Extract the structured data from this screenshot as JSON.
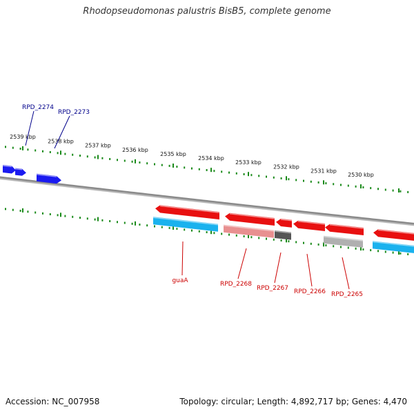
{
  "title": "Rhodopseudomonas palustris BisB5, complete genome",
  "footer": {
    "accession": "Accession: NC_007958",
    "summary": "Topology: circular; Length: 4,892,717 bp; Genes: 4,470"
  },
  "colors": {
    "backbone": "#808080",
    "tick": "#1a8a1a",
    "forward_gene": "#1a1af0",
    "reverse_gene": "#e81010",
    "reverse_label": "#cc0000",
    "forward_label": "#00008b",
    "cds_cyan": "#1ab2ee",
    "cds_pink": "#e89090",
    "cds_dark_gray": "#555555",
    "cds_light_gray": "#b0b0b0"
  },
  "scale_labels": [
    "2539 kbp",
    "2538 kbp",
    "2537 kbp",
    "2536 kbp",
    "2535 kbp",
    "2534 kbp",
    "2533 kbp",
    "2532 kbp",
    "2531 kbp",
    "2530 kbp"
  ],
  "gene_labels_forward": [
    "RPD_2274",
    "RPD_2273"
  ],
  "gene_labels_reverse": [
    "guaA",
    "RPD_2268",
    "RPD_2267",
    "RPD_2266",
    "RPD_2265"
  ]
}
